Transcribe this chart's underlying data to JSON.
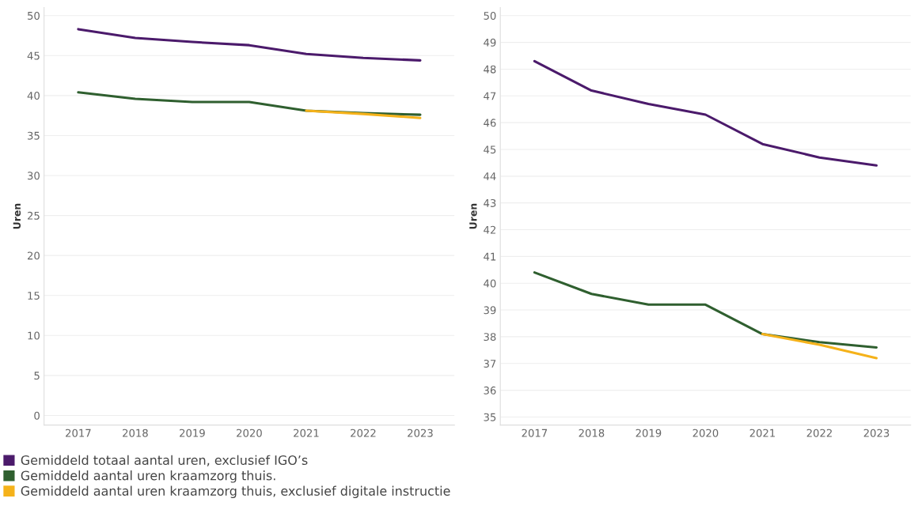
{
  "chart_data": [
    {
      "type": "line",
      "ylabel": "Uren",
      "categories": [
        "2017",
        "2018",
        "2019",
        "2020",
        "2021",
        "2022",
        "2023"
      ],
      "series": [
        {
          "name": "Gemiddeld totaal aantal uren, exclusief IGO’s",
          "color": "#4b1a6b",
          "values": [
            48.3,
            47.2,
            46.7,
            46.3,
            45.2,
            44.7,
            44.4
          ]
        },
        {
          "name": "Gemiddeld aantal uren kraamzorg thuis.",
          "color": "#2f5f2f",
          "values": [
            40.4,
            39.6,
            39.2,
            39.2,
            38.1,
            37.8,
            37.6
          ]
        },
        {
          "name": "Gemiddeld aantal uren kraamzorg thuis, exclusief digitale instructie",
          "color": "#f5b21a",
          "values": [
            null,
            null,
            null,
            null,
            38.1,
            37.7,
            37.2
          ]
        }
      ],
      "ylim": [
        -1.2,
        51
      ],
      "yticks": [
        0,
        5,
        10,
        15,
        20,
        25,
        30,
        35,
        40,
        45,
        50
      ],
      "grid": "y",
      "legend": "bottom"
    },
    {
      "type": "line",
      "ylabel": "Uren",
      "categories": [
        "2017",
        "2018",
        "2019",
        "2020",
        "2021",
        "2022",
        "2023"
      ],
      "series": [
        {
          "color": "#4b1a6b",
          "values": [
            48.3,
            47.2,
            46.7,
            46.3,
            45.2,
            44.7,
            44.4
          ]
        },
        {
          "color": "#2f5f2f",
          "values": [
            40.4,
            39.6,
            39.2,
            39.2,
            38.1,
            37.8,
            37.6
          ]
        },
        {
          "color": "#f5b21a",
          "values": [
            null,
            null,
            null,
            null,
            38.1,
            37.7,
            37.2
          ]
        }
      ],
      "ylim": [
        34.7,
        50.3
      ],
      "yticks": [
        35,
        36,
        37,
        38,
        39,
        40,
        41,
        42,
        43,
        44,
        45,
        46,
        47,
        48,
        49,
        50
      ],
      "grid": "y"
    }
  ]
}
